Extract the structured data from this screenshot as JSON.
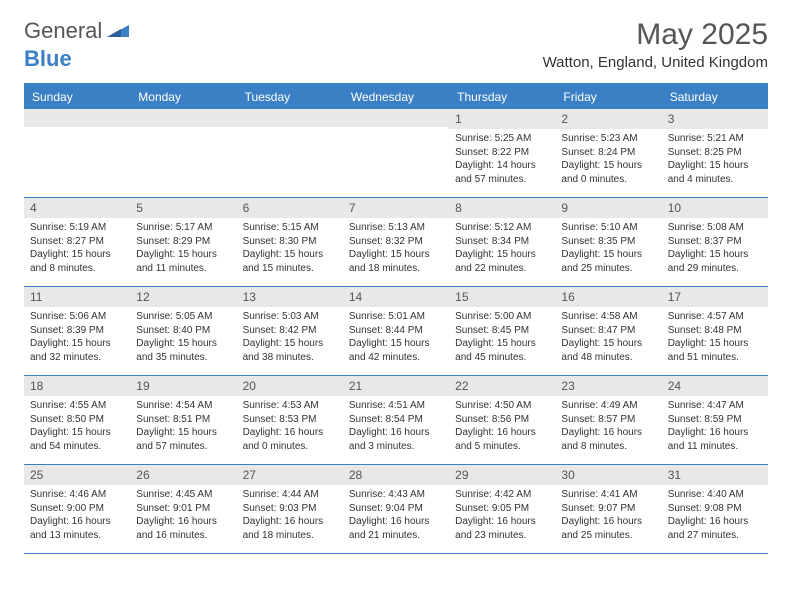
{
  "logo": {
    "text1": "General",
    "text2": "Blue",
    "accent": "#3b7fc4",
    "gray": "#555555"
  },
  "title": "May 2025",
  "location": "Watton, England, United Kingdom",
  "colors": {
    "header_bg": "#3b7fc4",
    "header_text": "#ffffff",
    "daynum_bg": "#e8e8e8",
    "border": "#3b7fc4",
    "text": "#333333"
  },
  "day_names": [
    "Sunday",
    "Monday",
    "Tuesday",
    "Wednesday",
    "Thursday",
    "Friday",
    "Saturday"
  ],
  "weeks": [
    [
      {
        "blank": true
      },
      {
        "blank": true
      },
      {
        "blank": true
      },
      {
        "blank": true
      },
      {
        "n": "1",
        "sr": "5:25 AM",
        "ss": "8:22 PM",
        "dl": "14 hours and 57 minutes."
      },
      {
        "n": "2",
        "sr": "5:23 AM",
        "ss": "8:24 PM",
        "dl": "15 hours and 0 minutes."
      },
      {
        "n": "3",
        "sr": "5:21 AM",
        "ss": "8:25 PM",
        "dl": "15 hours and 4 minutes."
      }
    ],
    [
      {
        "n": "4",
        "sr": "5:19 AM",
        "ss": "8:27 PM",
        "dl": "15 hours and 8 minutes."
      },
      {
        "n": "5",
        "sr": "5:17 AM",
        "ss": "8:29 PM",
        "dl": "15 hours and 11 minutes."
      },
      {
        "n": "6",
        "sr": "5:15 AM",
        "ss": "8:30 PM",
        "dl": "15 hours and 15 minutes."
      },
      {
        "n": "7",
        "sr": "5:13 AM",
        "ss": "8:32 PM",
        "dl": "15 hours and 18 minutes."
      },
      {
        "n": "8",
        "sr": "5:12 AM",
        "ss": "8:34 PM",
        "dl": "15 hours and 22 minutes."
      },
      {
        "n": "9",
        "sr": "5:10 AM",
        "ss": "8:35 PM",
        "dl": "15 hours and 25 minutes."
      },
      {
        "n": "10",
        "sr": "5:08 AM",
        "ss": "8:37 PM",
        "dl": "15 hours and 29 minutes."
      }
    ],
    [
      {
        "n": "11",
        "sr": "5:06 AM",
        "ss": "8:39 PM",
        "dl": "15 hours and 32 minutes."
      },
      {
        "n": "12",
        "sr": "5:05 AM",
        "ss": "8:40 PM",
        "dl": "15 hours and 35 minutes."
      },
      {
        "n": "13",
        "sr": "5:03 AM",
        "ss": "8:42 PM",
        "dl": "15 hours and 38 minutes."
      },
      {
        "n": "14",
        "sr": "5:01 AM",
        "ss": "8:44 PM",
        "dl": "15 hours and 42 minutes."
      },
      {
        "n": "15",
        "sr": "5:00 AM",
        "ss": "8:45 PM",
        "dl": "15 hours and 45 minutes."
      },
      {
        "n": "16",
        "sr": "4:58 AM",
        "ss": "8:47 PM",
        "dl": "15 hours and 48 minutes."
      },
      {
        "n": "17",
        "sr": "4:57 AM",
        "ss": "8:48 PM",
        "dl": "15 hours and 51 minutes."
      }
    ],
    [
      {
        "n": "18",
        "sr": "4:55 AM",
        "ss": "8:50 PM",
        "dl": "15 hours and 54 minutes."
      },
      {
        "n": "19",
        "sr": "4:54 AM",
        "ss": "8:51 PM",
        "dl": "15 hours and 57 minutes."
      },
      {
        "n": "20",
        "sr": "4:53 AM",
        "ss": "8:53 PM",
        "dl": "16 hours and 0 minutes."
      },
      {
        "n": "21",
        "sr": "4:51 AM",
        "ss": "8:54 PM",
        "dl": "16 hours and 3 minutes."
      },
      {
        "n": "22",
        "sr": "4:50 AM",
        "ss": "8:56 PM",
        "dl": "16 hours and 5 minutes."
      },
      {
        "n": "23",
        "sr": "4:49 AM",
        "ss": "8:57 PM",
        "dl": "16 hours and 8 minutes."
      },
      {
        "n": "24",
        "sr": "4:47 AM",
        "ss": "8:59 PM",
        "dl": "16 hours and 11 minutes."
      }
    ],
    [
      {
        "n": "25",
        "sr": "4:46 AM",
        "ss": "9:00 PM",
        "dl": "16 hours and 13 minutes."
      },
      {
        "n": "26",
        "sr": "4:45 AM",
        "ss": "9:01 PM",
        "dl": "16 hours and 16 minutes."
      },
      {
        "n": "27",
        "sr": "4:44 AM",
        "ss": "9:03 PM",
        "dl": "16 hours and 18 minutes."
      },
      {
        "n": "28",
        "sr": "4:43 AM",
        "ss": "9:04 PM",
        "dl": "16 hours and 21 minutes."
      },
      {
        "n": "29",
        "sr": "4:42 AM",
        "ss": "9:05 PM",
        "dl": "16 hours and 23 minutes."
      },
      {
        "n": "30",
        "sr": "4:41 AM",
        "ss": "9:07 PM",
        "dl": "16 hours and 25 minutes."
      },
      {
        "n": "31",
        "sr": "4:40 AM",
        "ss": "9:08 PM",
        "dl": "16 hours and 27 minutes."
      }
    ]
  ],
  "labels": {
    "sunrise": "Sunrise: ",
    "sunset": "Sunset: ",
    "daylight": "Daylight: "
  }
}
